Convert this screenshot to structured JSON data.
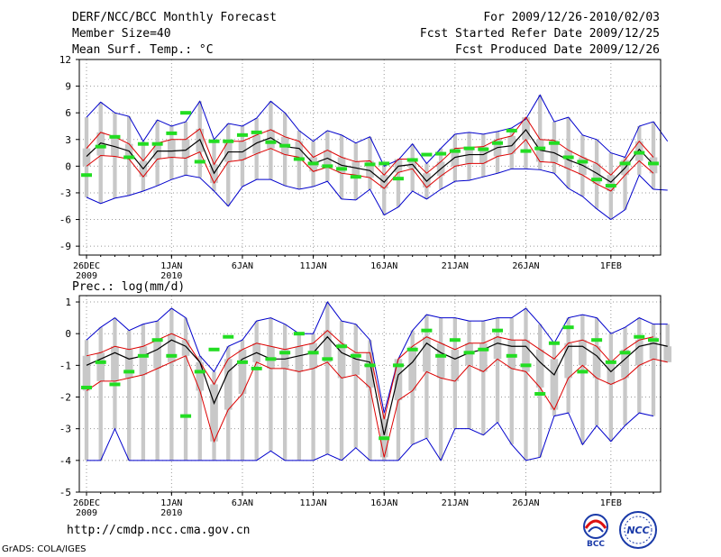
{
  "header": {
    "title": "DERF/NCC/BCC Monthly Forecast",
    "member_size": "Member Size=40",
    "variable": "Mean Surf. Temp.: °C",
    "period": "For 2009/12/26-2010/02/03",
    "started": "Fcst Started Refer Date 2009/12/25",
    "produced": "Fcst Produced Date 2009/12/26"
  },
  "footer": {
    "url": "http://cmdp.ncc.cma.gov.cn",
    "grads": "GrADS: COLA/IGES",
    "logo_bcc": "BCC",
    "logo_ncc": "NCC"
  },
  "colors": {
    "mean": "#000000",
    "envelope": "#0000cc",
    "inner": "#dd0000",
    "obs": "#22dd22",
    "box": "#c8c8c8",
    "grid": "#999999"
  },
  "chart_data": [
    {
      "type": "line",
      "title": "Mean Surf. Temp.: °C",
      "ylim": [
        -10,
        12
      ],
      "yticks": [
        12,
        9,
        6,
        3,
        0,
        -3,
        -6,
        -9
      ],
      "xticks": [
        {
          "day": 0,
          "label": "26DEC",
          "sub": "2009"
        },
        {
          "day": 6,
          "label": "1JAN",
          "sub": "2010"
        },
        {
          "day": 11,
          "label": "6JAN",
          "sub": ""
        },
        {
          "day": 16,
          "label": "11JAN",
          "sub": ""
        },
        {
          "day": 21,
          "label": "16JAN",
          "sub": ""
        },
        {
          "day": 26,
          "label": "21JAN",
          "sub": ""
        },
        {
          "day": 31,
          "label": "26JAN",
          "sub": ""
        },
        {
          "day": 37,
          "label": "1FEB",
          "sub": ""
        }
      ],
      "days": 40,
      "series": [
        {
          "name": "max",
          "values": [
            5.5,
            7.2,
            6.0,
            5.6,
            2.8,
            5.2,
            4.5,
            5.0,
            7.3,
            3.0,
            4.8,
            4.5,
            5.4,
            7.3,
            6.0,
            4.0,
            2.8,
            4.0,
            3.5,
            2.6,
            3.3,
            0.0,
            0.7,
            2.5,
            0.3,
            2.0,
            3.6,
            3.8,
            3.6,
            3.9,
            4.3,
            5.3,
            8.0,
            5.0,
            5.5,
            3.5,
            3.0,
            1.5,
            1.0,
            4.5,
            5.0,
            2.8
          ]
        },
        {
          "name": "upper",
          "values": [
            2.0,
            3.8,
            3.3,
            2.5,
            0.6,
            2.6,
            3.0,
            3.0,
            4.2,
            0.2,
            2.8,
            2.8,
            3.5,
            4.1,
            3.3,
            2.8,
            1.0,
            1.8,
            1.0,
            0.5,
            0.6,
            -1.0,
            0.8,
            0.8,
            -0.8,
            0.5,
            2.0,
            2.1,
            2.2,
            3.0,
            3.4,
            5.5,
            3.0,
            2.9,
            1.8,
            1.0,
            0.3,
            -1.0,
            0.7,
            2.8,
            1.0
          ]
        },
        {
          "name": "mean",
          "values": [
            1.1,
            2.6,
            2.2,
            1.7,
            -0.3,
            1.7,
            1.7,
            1.8,
            3.0,
            -0.8,
            1.6,
            1.6,
            2.6,
            3.2,
            2.2,
            2.0,
            0.3,
            0.9,
            0.1,
            -0.2,
            -0.5,
            -1.8,
            0.0,
            0.2,
            -1.7,
            -0.3,
            1.0,
            1.3,
            1.3,
            2.1,
            2.3,
            4.1,
            1.8,
            1.5,
            0.7,
            0.1,
            -0.8,
            -1.8,
            -0.2,
            1.9,
            0.2
          ]
        },
        {
          "name": "lower",
          "values": [
            0.0,
            1.2,
            1.1,
            0.8,
            -1.2,
            0.8,
            1.0,
            0.9,
            1.6,
            -1.9,
            0.5,
            0.7,
            1.4,
            2.0,
            1.3,
            1.0,
            -0.6,
            -0.1,
            -0.8,
            -1.0,
            -1.3,
            -2.5,
            -0.7,
            -0.3,
            -2.4,
            -1.1,
            0.0,
            0.3,
            0.3,
            1.1,
            1.4,
            3.0,
            0.5,
            0.4,
            -0.3,
            -1.0,
            -2.0,
            -2.8,
            -1.0,
            0.6,
            -0.8
          ]
        },
        {
          "name": "min",
          "values": [
            -3.5,
            -4.2,
            -3.6,
            -3.3,
            -2.8,
            -2.2,
            -1.5,
            -1.0,
            -1.3,
            -2.8,
            -4.5,
            -2.3,
            -1.5,
            -1.5,
            -2.2,
            -2.6,
            -2.3,
            -1.7,
            -3.7,
            -3.8,
            -2.6,
            -5.5,
            -4.6,
            -2.8,
            -3.7,
            -2.6,
            -1.7,
            -1.6,
            -1.2,
            -0.8,
            -0.3,
            -0.3,
            -0.4,
            -0.8,
            -2.5,
            -3.4,
            -4.8,
            -6.0,
            -4.9,
            -1.0,
            -2.6,
            -2.7
          ]
        },
        {
          "name": "observed",
          "values": [
            -1.0,
            2.2,
            3.3,
            1.0,
            2.5,
            2.5,
            3.7,
            6.0,
            0.5,
            2.8,
            2.8,
            3.5,
            3.8,
            2.7,
            2.3,
            0.8,
            0.3,
            0.0,
            -0.3,
            -1.2,
            0.2,
            0.3,
            -1.4,
            0.7,
            1.3,
            1.4,
            1.7,
            2.0,
            1.9,
            2.6,
            4.0,
            1.7,
            2.0,
            2.6,
            1.0,
            0.5,
            -1.5,
            -2.2,
            0.3,
            1.5,
            0.3
          ]
        }
      ]
    },
    {
      "type": "line",
      "title": "Prec.: log(mm/d)",
      "ylim": [
        -5,
        1.2
      ],
      "yticks": [
        1,
        0,
        -1,
        -2,
        -3,
        -4,
        -5
      ],
      "xticks": [
        {
          "day": 0,
          "label": "26DEC",
          "sub": "2009"
        },
        {
          "day": 6,
          "label": "1JAN",
          "sub": "2010"
        },
        {
          "day": 11,
          "label": "6JAN",
          "sub": ""
        },
        {
          "day": 16,
          "label": "11JAN",
          "sub": ""
        },
        {
          "day": 21,
          "label": "16JAN",
          "sub": ""
        },
        {
          "day": 26,
          "label": "21JAN",
          "sub": ""
        },
        {
          "day": 31,
          "label": "26JAN",
          "sub": ""
        },
        {
          "day": 37,
          "label": "1FEB",
          "sub": ""
        }
      ],
      "days": 40,
      "series": [
        {
          "name": "max",
          "values": [
            -0.2,
            0.2,
            0.5,
            0.1,
            0.3,
            0.4,
            0.8,
            0.5,
            -0.7,
            -1.2,
            -0.4,
            -0.2,
            0.4,
            0.5,
            0.3,
            0.0,
            0.0,
            1.0,
            0.4,
            0.3,
            -0.2,
            -2.5,
            -0.8,
            0.1,
            0.6,
            0.5,
            0.5,
            0.4,
            0.4,
            0.5,
            0.5,
            0.8,
            0.3,
            -0.3,
            0.5,
            0.6,
            0.5,
            0.0,
            0.2,
            0.5,
            0.3,
            0.3
          ]
        },
        {
          "name": "upper",
          "values": [
            -0.7,
            -0.6,
            -0.4,
            -0.5,
            -0.4,
            -0.2,
            0.0,
            -0.2,
            -0.9,
            -1.6,
            -0.8,
            -0.5,
            -0.3,
            -0.4,
            -0.5,
            -0.4,
            -0.3,
            0.1,
            -0.3,
            -0.6,
            -0.6,
            -2.7,
            -0.8,
            -0.4,
            -0.1,
            -0.3,
            -0.5,
            -0.3,
            -0.3,
            -0.1,
            -0.2,
            -0.2,
            -0.5,
            -0.8,
            -0.3,
            -0.2,
            -0.4,
            -0.9,
            -0.5,
            -0.2,
            -0.1
          ]
        },
        {
          "name": "mean",
          "values": [
            -1.0,
            -0.8,
            -0.6,
            -0.8,
            -0.7,
            -0.5,
            -0.2,
            -0.4,
            -0.9,
            -2.2,
            -1.2,
            -0.8,
            -0.6,
            -0.8,
            -0.8,
            -0.7,
            -0.6,
            -0.1,
            -0.6,
            -0.8,
            -0.9,
            -3.2,
            -1.3,
            -0.9,
            -0.3,
            -0.6,
            -0.8,
            -0.6,
            -0.5,
            -0.3,
            -0.4,
            -0.4,
            -0.9,
            -1.3,
            -0.4,
            -0.4,
            -0.7,
            -1.2,
            -0.8,
            -0.4,
            -0.3,
            -0.4
          ]
        },
        {
          "name": "lower",
          "values": [
            -1.8,
            -1.5,
            -1.5,
            -1.4,
            -1.3,
            -1.1,
            -0.9,
            -0.7,
            -1.8,
            -3.4,
            -2.4,
            -1.9,
            -0.9,
            -1.1,
            -1.1,
            -1.2,
            -1.1,
            -0.9,
            -1.4,
            -1.3,
            -1.7,
            -3.9,
            -2.1,
            -1.8,
            -1.2,
            -1.4,
            -1.5,
            -1.0,
            -1.2,
            -0.8,
            -1.1,
            -1.2,
            -1.7,
            -2.4,
            -1.4,
            -1.0,
            -1.4,
            -1.6,
            -1.4,
            -1.0,
            -0.8,
            -0.9
          ]
        },
        {
          "name": "min",
          "values": [
            -4.0,
            -4.0,
            -3.0,
            -4.0,
            -4.0,
            -4.0,
            -4.0,
            -4.0,
            -4.0,
            -4.0,
            -4.0,
            -4.0,
            -4.0,
            -3.7,
            -4.0,
            -4.0,
            -4.0,
            -3.8,
            -4.0,
            -3.6,
            -4.0,
            -4.0,
            -4.0,
            -3.5,
            -3.3,
            -4.0,
            -3.0,
            -3.0,
            -3.2,
            -2.8,
            -3.5,
            -4.0,
            -3.9,
            -2.6,
            -2.5,
            -3.5,
            -2.9,
            -3.4,
            -2.9,
            -2.5,
            -2.6
          ]
        },
        {
          "name": "observed",
          "values": [
            -1.7,
            -0.9,
            -1.6,
            -1.2,
            -0.7,
            -0.2,
            -0.7,
            -2.6,
            -1.2,
            -0.5,
            -0.1,
            -0.9,
            -1.1,
            -0.8,
            -0.6,
            0.0,
            -0.6,
            -0.8,
            -0.4,
            -0.7,
            -1.0,
            -3.3,
            -1.0,
            -0.5,
            0.1,
            -0.7,
            -0.2,
            -0.6,
            -0.5,
            0.1,
            -0.7,
            -1.0,
            -1.9,
            -0.3,
            0.2,
            -1.2,
            -0.2,
            -0.9,
            -0.6,
            -0.1,
            -0.2
          ]
        }
      ]
    }
  ]
}
